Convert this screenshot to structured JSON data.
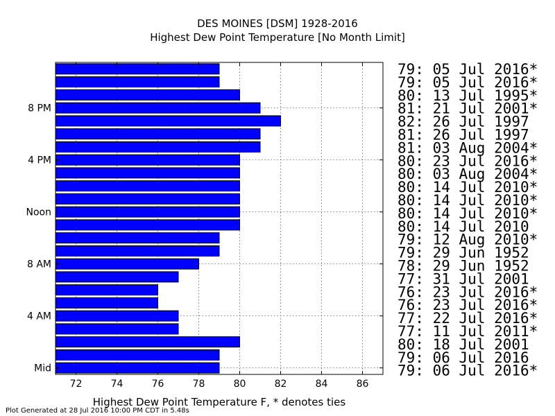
{
  "title_line1": "DES MOINES [DSM] 1928-2016",
  "title_line2": "Highest Dew Point Temperature [No Month Limit]",
  "footer": "Plot Generated at 28 Jul 2016 10:00 PM CDT in 5.48s",
  "colors": {
    "bar_fill": "#0000ff",
    "bar_edge": "#000000",
    "grid": "#555555"
  },
  "chart_data": {
    "type": "bar",
    "orientation": "horizontal",
    "xlabel": "Highest Dew Point Temperature F, * denotes ties",
    "ylabel": "",
    "xlim": [
      71,
      87
    ],
    "xticks": [
      72,
      74,
      76,
      78,
      80,
      82,
      84,
      86
    ],
    "ytick_labels": [
      {
        "hour": 0,
        "label": "Mid"
      },
      {
        "hour": 4,
        "label": "4 AM"
      },
      {
        "hour": 8,
        "label": "8 AM"
      },
      {
        "hour": 12,
        "label": "Noon"
      },
      {
        "hour": 16,
        "label": "4 PM"
      },
      {
        "hour": 20,
        "label": "8 PM"
      }
    ],
    "grid": true,
    "hours": [
      0,
      1,
      2,
      3,
      4,
      5,
      6,
      7,
      8,
      9,
      10,
      11,
      12,
      13,
      14,
      15,
      16,
      17,
      18,
      19,
      20,
      21,
      22,
      23
    ],
    "values": [
      79,
      79,
      80,
      77,
      77,
      76,
      76,
      77,
      78,
      79,
      79,
      80,
      80,
      80,
      80,
      80,
      80,
      81,
      81,
      82,
      81,
      80,
      79,
      79
    ],
    "record_labels": [
      "79: 06 Jul 2016*",
      "79: 06 Jul 2016",
      "80: 18 Jul 2001",
      "77: 11 Jul 2011*",
      "77: 22 Jul 2016*",
      "76: 23 Jul 2016*",
      "76: 23 Jul 2016*",
      "77: 31 Jul 2001",
      "78: 29 Jun 1952",
      "79: 29 Jun 1952",
      "79: 12 Aug 2010*",
      "80: 14 Jul 2010",
      "80: 14 Jul 2010*",
      "80: 14 Jul 2010*",
      "80: 14 Jul 2010*",
      "80: 03 Aug 2004*",
      "80: 23 Jul 2016*",
      "81: 03 Aug 2004*",
      "81: 26 Jul 1997",
      "82: 26 Jul 1997",
      "81: 21 Jul 2001*",
      "80: 13 Jul 1995*",
      "79: 05 Jul 2016*",
      "79: 05 Jul 2016*"
    ]
  }
}
